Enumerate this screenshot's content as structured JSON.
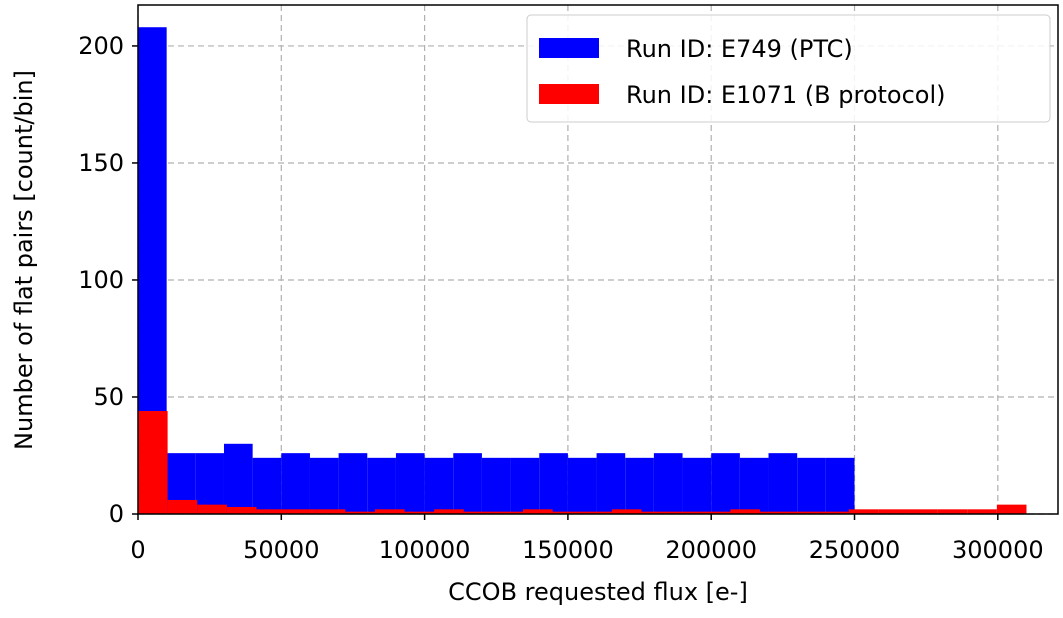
{
  "chart_data": {
    "type": "histogram",
    "xlabel": "CCOB requested flux [e-]",
    "ylabel": "Number of flat pairs [count/bin]",
    "xlim": [
      0,
      321000
    ],
    "ylim": [
      0,
      217.5
    ],
    "xticks": [
      0,
      50000,
      100000,
      150000,
      200000,
      250000,
      300000
    ],
    "yticks": [
      0,
      50,
      100,
      150,
      200
    ],
    "grid": true,
    "legend": "upper right",
    "series": [
      {
        "name": "Run ID: E749 (PTC)",
        "color": "#0000ff",
        "bins": [
          0,
          10000,
          20000,
          30000,
          40000,
          50000,
          60000,
          70000,
          80000,
          90000,
          100000,
          110000,
          120000,
          130000,
          140000,
          150000,
          160000,
          170000,
          180000,
          190000,
          200000,
          210000,
          220000,
          230000,
          240000,
          250000
        ],
        "values": [
          208,
          26,
          26,
          30,
          24,
          26,
          24,
          26,
          24,
          26,
          24,
          26,
          24,
          24,
          26,
          24,
          26,
          24,
          26,
          24,
          26,
          24,
          26,
          24,
          24
        ]
      },
      {
        "name": "Run ID: E1071 (B protocol)",
        "color": "#ff0000",
        "bins": [
          0,
          10333,
          20667,
          31000,
          41333,
          51667,
          62000,
          72333,
          82667,
          93000,
          103333,
          113667,
          124000,
          134333,
          144667,
          155000,
          165333,
          175667,
          186000,
          196333,
          206667,
          217000,
          227333,
          237667,
          248000,
          258333,
          268667,
          279000,
          289333,
          299667,
          310000
        ],
        "values": [
          44,
          6,
          4,
          3,
          2,
          2,
          2,
          1,
          2,
          1,
          2,
          1,
          1,
          2,
          1,
          1,
          2,
          1,
          1,
          1,
          2,
          1,
          1,
          1,
          2,
          2,
          2,
          2,
          2,
          4
        ]
      }
    ]
  }
}
